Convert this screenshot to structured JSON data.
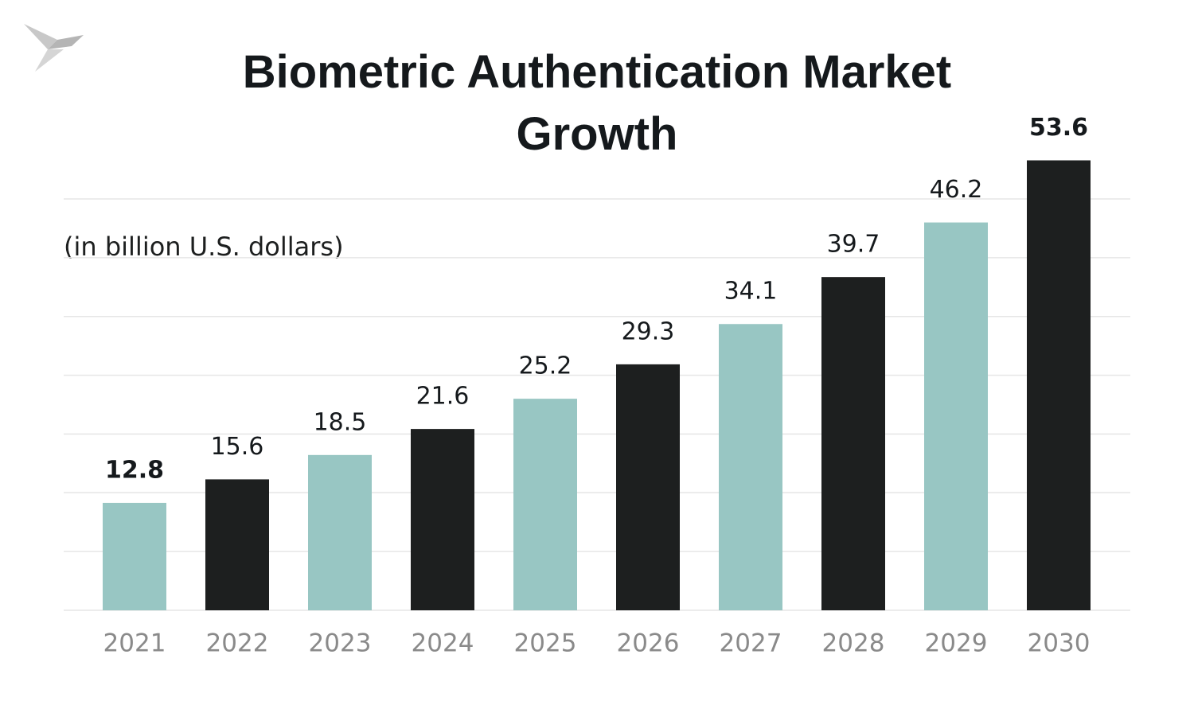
{
  "chart_data": {
    "type": "bar",
    "title": "Biometric Authentication Market Growth",
    "subtitle": "(in billion U.S. dollars)",
    "categories": [
      "2021",
      "2022",
      "2023",
      "2024",
      "2025",
      "2026",
      "2027",
      "2028",
      "2029",
      "2030"
    ],
    "values": [
      12.8,
      15.6,
      18.5,
      21.6,
      25.2,
      29.3,
      34.1,
      39.7,
      46.2,
      53.6
    ],
    "colors": [
      "#98c6c3",
      "#1d1f1f",
      "#98c6c3",
      "#1d1f1f",
      "#98c6c3",
      "#1d1f1f",
      "#98c6c3",
      "#1d1f1f",
      "#98c6c3",
      "#1d1f1f"
    ],
    "ylim": [
      0,
      60
    ],
    "yticks": [
      0,
      7,
      14,
      21,
      28,
      35,
      42,
      49
    ],
    "grid": true
  }
}
